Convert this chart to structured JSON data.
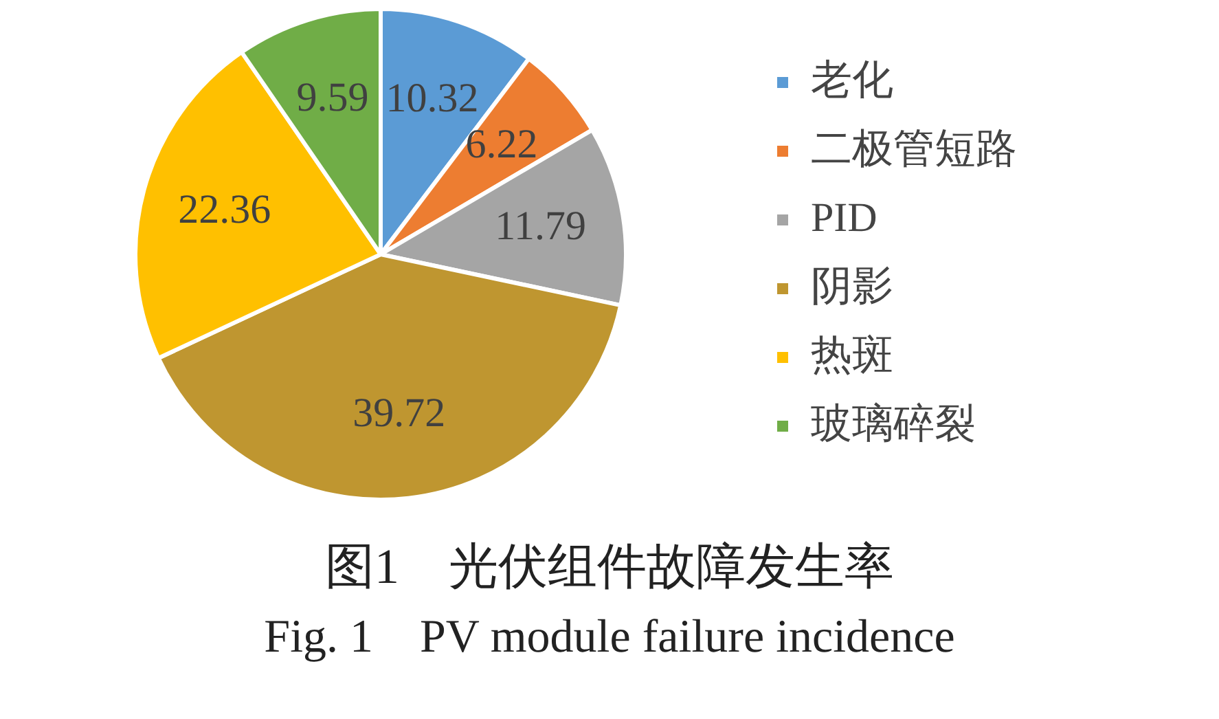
{
  "chart_data": {
    "type": "pie",
    "title": "图1　光伏组件故障发生率",
    "subtitle": "Fig. 1　PV module failure incidence",
    "categories": [
      "老化",
      "二极管短路",
      "PID",
      "阴影",
      "热斑",
      "玻璃碎裂"
    ],
    "values": [
      10.32,
      6.22,
      11.79,
      39.72,
      22.36,
      9.59
    ],
    "colors": [
      "#5b9bd5",
      "#ed7d31",
      "#a5a5a5",
      "#bf9630",
      "#ffc000",
      "#70ad47"
    ],
    "data_labels": true,
    "legend": "right"
  }
}
